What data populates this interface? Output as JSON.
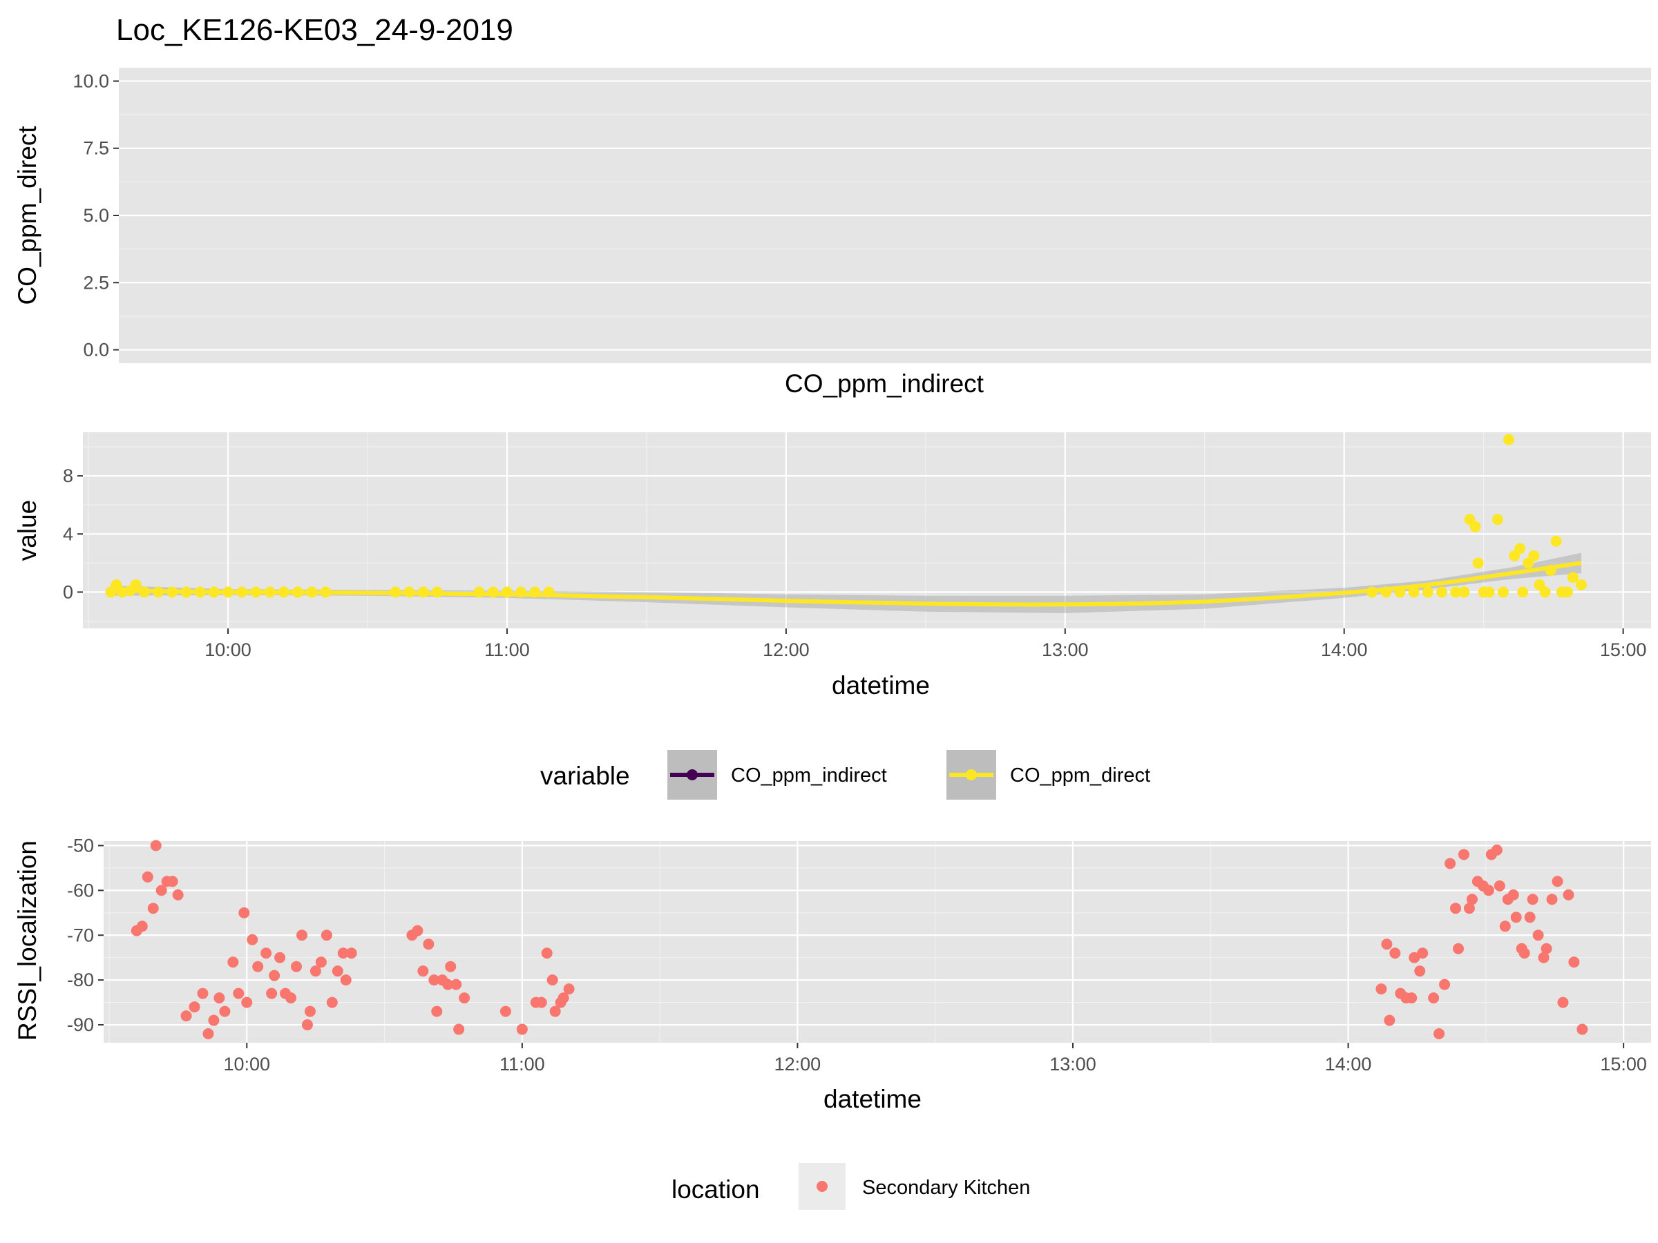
{
  "chart_data": [
    {
      "type": "scatter",
      "title": "Loc_KE126-KE03_24-9-2019",
      "ylabel": "CO_ppm_direct",
      "xlabel": "CO_ppm_indirect",
      "ylim": [
        -0.5,
        10.5
      ],
      "yticks": [
        0.0,
        2.5,
        5.0,
        7.5,
        10.0
      ],
      "ytick_labels": [
        "0.0",
        "2.5",
        "5.0",
        "7.5",
        "10.0"
      ],
      "points": [],
      "grid": true
    },
    {
      "type": "scatter",
      "xlabel": "datetime",
      "ylabel": "value",
      "xlim": [
        9.48,
        15.1
      ],
      "ylim": [
        -2.5,
        11
      ],
      "xticks": [
        10,
        11,
        12,
        13,
        14,
        15
      ],
      "xtick_labels": [
        "10:00",
        "11:00",
        "12:00",
        "13:00",
        "14:00",
        "15:00"
      ],
      "yticks": [
        0,
        4,
        8
      ],
      "ytick_labels": [
        "0",
        "4",
        "8"
      ],
      "grid": true,
      "series": [
        {
          "name": "CO_ppm_indirect",
          "color": "#440154",
          "points": []
        },
        {
          "name": "CO_ppm_direct",
          "color": "#fde725",
          "points": [
            [
              9.58,
              0
            ],
            [
              9.6,
              0.5
            ],
            [
              9.62,
              0
            ],
            [
              9.65,
              0.1
            ],
            [
              9.67,
              0.5
            ],
            [
              9.7,
              0
            ],
            [
              9.75,
              0
            ],
            [
              9.8,
              0
            ],
            [
              9.85,
              0
            ],
            [
              9.9,
              0
            ],
            [
              9.95,
              0
            ],
            [
              10.0,
              0
            ],
            [
              10.05,
              0
            ],
            [
              10.1,
              0
            ],
            [
              10.15,
              0
            ],
            [
              10.2,
              0
            ],
            [
              10.25,
              0
            ],
            [
              10.3,
              0
            ],
            [
              10.35,
              0
            ],
            [
              10.6,
              0
            ],
            [
              10.65,
              0
            ],
            [
              10.7,
              0
            ],
            [
              10.75,
              0
            ],
            [
              10.9,
              0
            ],
            [
              10.95,
              0
            ],
            [
              11.0,
              0
            ],
            [
              11.05,
              0
            ],
            [
              11.1,
              0
            ],
            [
              11.15,
              0
            ],
            [
              14.1,
              0
            ],
            [
              14.15,
              0
            ],
            [
              14.2,
              0
            ],
            [
              14.25,
              0
            ],
            [
              14.3,
              0
            ],
            [
              14.35,
              0
            ],
            [
              14.4,
              0
            ],
            [
              14.43,
              0
            ],
            [
              14.45,
              5
            ],
            [
              14.47,
              4.5
            ],
            [
              14.48,
              2
            ],
            [
              14.5,
              0
            ],
            [
              14.52,
              0
            ],
            [
              14.55,
              5
            ],
            [
              14.57,
              0
            ],
            [
              14.59,
              10.5
            ],
            [
              14.61,
              2.5
            ],
            [
              14.63,
              3
            ],
            [
              14.64,
              0
            ],
            [
              14.66,
              2
            ],
            [
              14.68,
              2.5
            ],
            [
              14.7,
              0.5
            ],
            [
              14.72,
              0
            ],
            [
              14.74,
              1.5
            ],
            [
              14.76,
              3.5
            ],
            [
              14.78,
              0
            ],
            [
              14.8,
              0
            ],
            [
              14.82,
              1
            ],
            [
              14.85,
              0.5
            ]
          ],
          "trend": [
            [
              9.58,
              0.1
            ],
            [
              9.8,
              0.05
            ],
            [
              10.0,
              0.0
            ],
            [
              10.5,
              -0.05
            ],
            [
              11.0,
              -0.15
            ],
            [
              11.5,
              -0.35
            ],
            [
              12.0,
              -0.6
            ],
            [
              12.5,
              -0.8
            ],
            [
              13.0,
              -0.85
            ],
            [
              13.5,
              -0.65
            ],
            [
              14.0,
              -0.05
            ],
            [
              14.3,
              0.5
            ],
            [
              14.6,
              1.3
            ],
            [
              14.85,
              2.0
            ]
          ],
          "ribbon_half_width": [
            [
              9.58,
              0.35
            ],
            [
              10.0,
              0.2
            ],
            [
              10.5,
              0.2
            ],
            [
              11.0,
              0.25
            ],
            [
              11.5,
              0.35
            ],
            [
              12.0,
              0.45
            ],
            [
              12.5,
              0.55
            ],
            [
              13.0,
              0.6
            ],
            [
              13.5,
              0.5
            ],
            [
              14.0,
              0.35
            ],
            [
              14.3,
              0.3
            ],
            [
              14.6,
              0.4
            ],
            [
              14.85,
              0.7
            ]
          ],
          "trend_color": "#fde725"
        }
      ]
    },
    {
      "type": "scatter",
      "xlabel": "datetime",
      "ylabel": "RSSI_localization",
      "xlim": [
        9.48,
        15.1
      ],
      "ylim": [
        -94,
        -49
      ],
      "xticks": [
        10,
        11,
        12,
        13,
        14,
        15
      ],
      "xtick_labels": [
        "10:00",
        "11:00",
        "12:00",
        "13:00",
        "14:00",
        "15:00"
      ],
      "yticks": [
        -90,
        -80,
        -70,
        -60,
        -50
      ],
      "ytick_labels": [
        "-90",
        "-80",
        "-70",
        "-60",
        "-50"
      ],
      "grid": true,
      "series": [
        {
          "name": "Secondary Kitchen",
          "color": "#f8766d",
          "points": [
            [
              9.6,
              -69
            ],
            [
              9.62,
              -68
            ],
            [
              9.64,
              -57
            ],
            [
              9.66,
              -64
            ],
            [
              9.67,
              -50
            ],
            [
              9.69,
              -60
            ],
            [
              9.71,
              -58
            ],
            [
              9.73,
              -58
            ],
            [
              9.75,
              -61
            ],
            [
              9.78,
              -88
            ],
            [
              9.81,
              -86
            ],
            [
              9.84,
              -83
            ],
            [
              9.86,
              -92
            ],
            [
              9.88,
              -89
            ],
            [
              9.9,
              -84
            ],
            [
              9.92,
              -87
            ],
            [
              9.95,
              -76
            ],
            [
              9.97,
              -83
            ],
            [
              9.99,
              -65
            ],
            [
              10.0,
              -85
            ],
            [
              10.02,
              -71
            ],
            [
              10.04,
              -77
            ],
            [
              10.07,
              -74
            ],
            [
              10.09,
              -83
            ],
            [
              10.1,
              -79
            ],
            [
              10.12,
              -75
            ],
            [
              10.14,
              -83
            ],
            [
              10.16,
              -84
            ],
            [
              10.18,
              -77
            ],
            [
              10.2,
              -70
            ],
            [
              10.22,
              -90
            ],
            [
              10.23,
              -87
            ],
            [
              10.25,
              -78
            ],
            [
              10.27,
              -76
            ],
            [
              10.29,
              -70
            ],
            [
              10.31,
              -85
            ],
            [
              10.33,
              -78
            ],
            [
              10.35,
              -74
            ],
            [
              10.36,
              -80
            ],
            [
              10.38,
              -74
            ],
            [
              10.6,
              -70
            ],
            [
              10.62,
              -69
            ],
            [
              10.64,
              -78
            ],
            [
              10.66,
              -72
            ],
            [
              10.68,
              -80
            ],
            [
              10.69,
              -87
            ],
            [
              10.71,
              -80
            ],
            [
              10.73,
              -81
            ],
            [
              10.74,
              -77
            ],
            [
              10.76,
              -81
            ],
            [
              10.77,
              -91
            ],
            [
              10.79,
              -84
            ],
            [
              10.94,
              -87
            ],
            [
              11.0,
              -91
            ],
            [
              11.05,
              -85
            ],
            [
              11.07,
              -85
            ],
            [
              11.09,
              -74
            ],
            [
              11.11,
              -80
            ],
            [
              11.12,
              -87
            ],
            [
              11.14,
              -85
            ],
            [
              11.15,
              -84
            ],
            [
              11.17,
              -82
            ],
            [
              14.12,
              -82
            ],
            [
              14.14,
              -72
            ],
            [
              14.15,
              -89
            ],
            [
              14.17,
              -74
            ],
            [
              14.19,
              -83
            ],
            [
              14.21,
              -84
            ],
            [
              14.23,
              -84
            ],
            [
              14.24,
              -75
            ],
            [
              14.26,
              -78
            ],
            [
              14.27,
              -74
            ],
            [
              14.31,
              -84
            ],
            [
              14.33,
              -92
            ],
            [
              14.35,
              -81
            ],
            [
              14.37,
              -54
            ],
            [
              14.39,
              -64
            ],
            [
              14.4,
              -73
            ],
            [
              14.42,
              -52
            ],
            [
              14.44,
              -64
            ],
            [
              14.45,
              -62
            ],
            [
              14.47,
              -58
            ],
            [
              14.49,
              -59
            ],
            [
              14.51,
              -60
            ],
            [
              14.52,
              -52
            ],
            [
              14.54,
              -51
            ],
            [
              14.55,
              -59
            ],
            [
              14.57,
              -68
            ],
            [
              14.58,
              -62
            ],
            [
              14.6,
              -61
            ],
            [
              14.61,
              -66
            ],
            [
              14.63,
              -73
            ],
            [
              14.64,
              -74
            ],
            [
              14.66,
              -66
            ],
            [
              14.67,
              -62
            ],
            [
              14.69,
              -70
            ],
            [
              14.71,
              -75
            ],
            [
              14.72,
              -73
            ],
            [
              14.74,
              -62
            ],
            [
              14.76,
              -58
            ],
            [
              14.78,
              -85
            ],
            [
              14.8,
              -61
            ],
            [
              14.82,
              -76
            ],
            [
              14.85,
              -91
            ]
          ]
        }
      ]
    }
  ],
  "legends": {
    "variable": {
      "title": "variable",
      "items": [
        {
          "label": "CO_ppm_indirect",
          "color": "#440154"
        },
        {
          "label": "CO_ppm_direct",
          "color": "#fde725"
        }
      ]
    },
    "location": {
      "title": "location",
      "items": [
        {
          "label": "Secondary Kitchen",
          "color": "#f8766d"
        }
      ]
    }
  }
}
